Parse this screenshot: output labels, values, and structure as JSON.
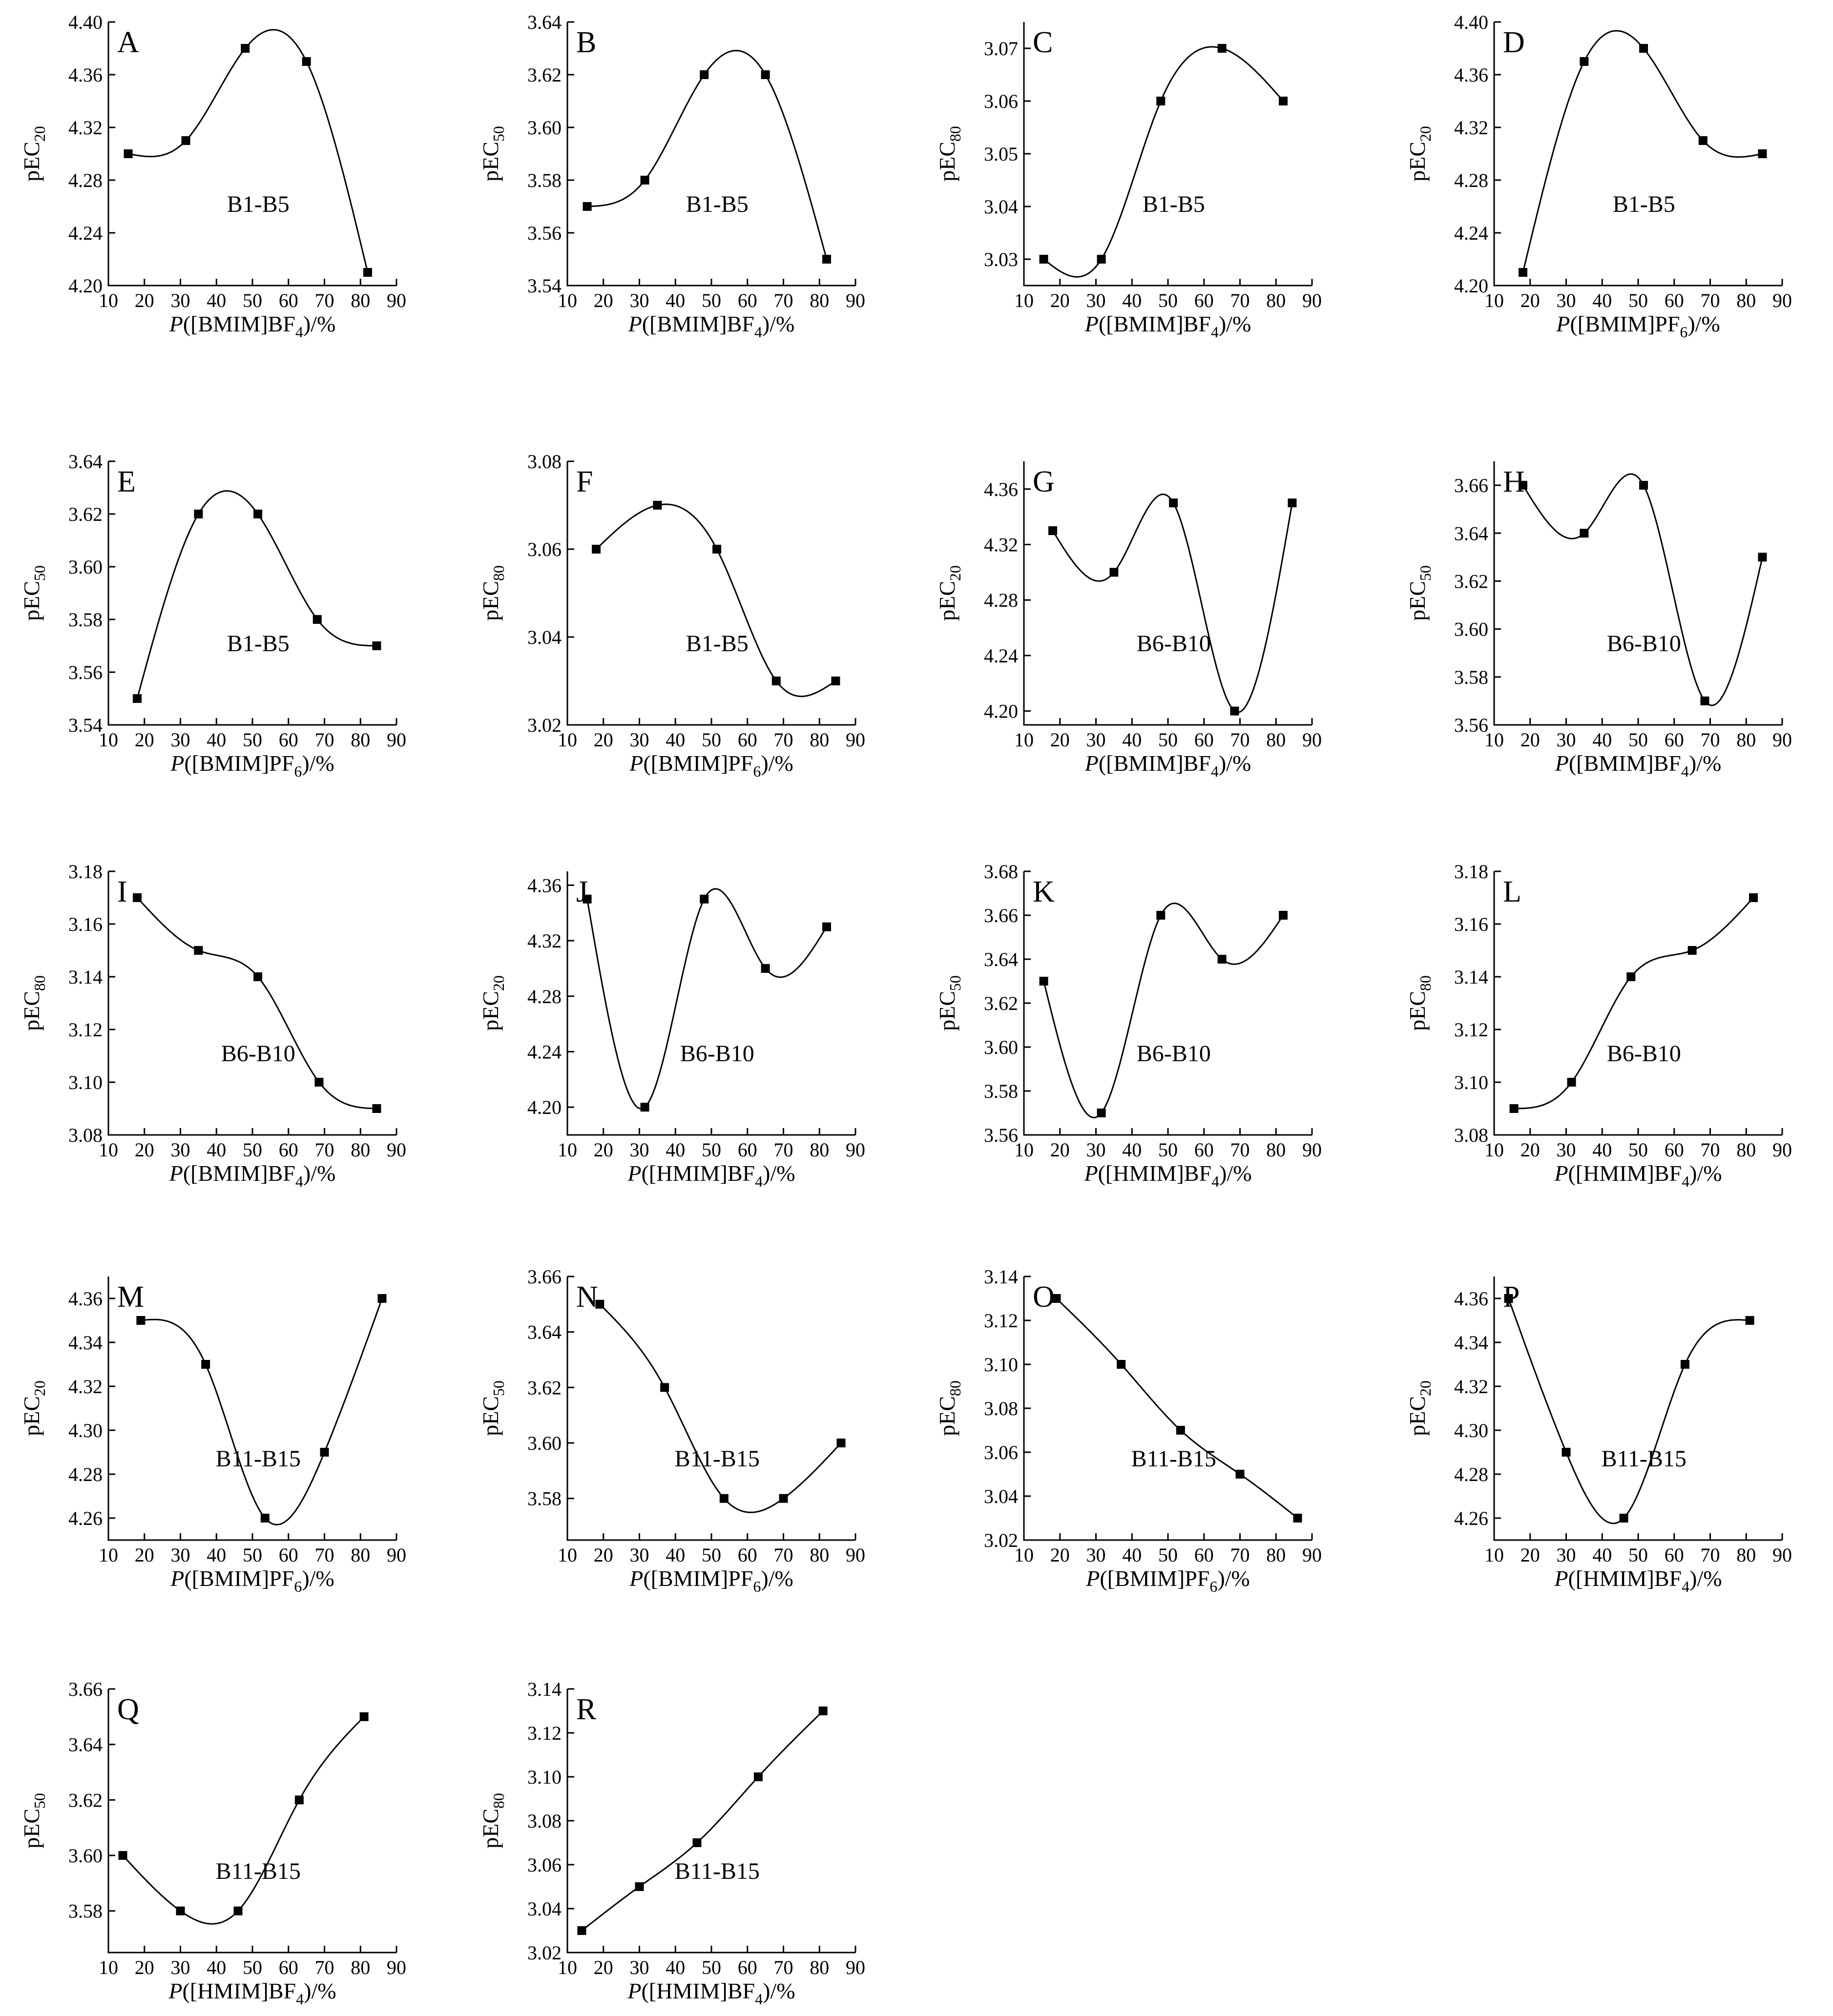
{
  "figure": {
    "background": "#ffffff",
    "stroke_color": "#000000"
  },
  "chart_data": [
    {
      "panel": "A",
      "type": "scatter",
      "series_label": "B1-B5",
      "ylabel_main": "pEC",
      "ylabel_sub": "20",
      "xlabel_ion": "[BMIM]BF",
      "xlabel_sub": "4",
      "xlim": [
        10,
        90
      ],
      "ylim": [
        4.2,
        4.4
      ],
      "xticks": [
        "10",
        "20",
        "30",
        "40",
        "50",
        "60",
        "70",
        "80",
        "90"
      ],
      "yticks": [
        "4.20",
        "4.24",
        "4.28",
        "4.32",
        "4.36",
        "4.40"
      ],
      "x": [
        15.5,
        31.5,
        48,
        65,
        82
      ],
      "y": [
        4.3,
        4.31,
        4.38,
        4.37,
        4.21
      ]
    },
    {
      "panel": "B",
      "type": "scatter",
      "series_label": "B1-B5",
      "ylabel_main": "pEC",
      "ylabel_sub": "50",
      "xlabel_ion": "[BMIM]BF",
      "xlabel_sub": "4",
      "xlim": [
        10,
        90
      ],
      "ylim": [
        3.54,
        3.64
      ],
      "xticks": [
        "10",
        "20",
        "30",
        "40",
        "50",
        "60",
        "70",
        "80",
        "90"
      ],
      "yticks": [
        "3.54",
        "3.56",
        "3.58",
        "3.60",
        "3.62",
        "3.64"
      ],
      "x": [
        15.5,
        31.5,
        48,
        65,
        82
      ],
      "y": [
        3.57,
        3.58,
        3.62,
        3.62,
        3.55
      ]
    },
    {
      "panel": "C",
      "type": "scatter",
      "series_label": "B1-B5",
      "ylabel_main": "pEC",
      "ylabel_sub": "80",
      "xlabel_ion": "[BMIM]BF",
      "xlabel_sub": "4",
      "xlim": [
        10,
        90
      ],
      "ylim": [
        3.025,
        3.075
      ],
      "xticks": [
        "10",
        "20",
        "30",
        "40",
        "50",
        "60",
        "70",
        "80",
        "90"
      ],
      "yticks": [
        "3.03",
        "3.04",
        "3.05",
        "3.06",
        "3.07"
      ],
      "x": [
        15.5,
        31.5,
        48,
        65,
        82
      ],
      "y": [
        3.03,
        3.03,
        3.06,
        3.07,
        3.06
      ]
    },
    {
      "panel": "D",
      "type": "scatter",
      "series_label": "B1-B5",
      "ylabel_main": "pEC",
      "ylabel_sub": "20",
      "xlabel_ion": "[BMIM]PF",
      "xlabel_sub": "6",
      "xlim": [
        10,
        90
      ],
      "ylim": [
        4.2,
        4.4
      ],
      "xticks": [
        "10",
        "20",
        "30",
        "40",
        "50",
        "60",
        "70",
        "80",
        "90"
      ],
      "yticks": [
        "4.20",
        "4.24",
        "4.28",
        "4.32",
        "4.36",
        "4.40"
      ],
      "x": [
        18,
        35,
        51.5,
        68,
        84.5
      ],
      "y": [
        4.21,
        4.37,
        4.38,
        4.31,
        4.3
      ]
    },
    {
      "panel": "E",
      "type": "scatter",
      "series_label": "B1-B5",
      "ylabel_main": "pEC",
      "ylabel_sub": "50",
      "xlabel_ion": "[BMIM]PF",
      "xlabel_sub": "6",
      "xlim": [
        10,
        90
      ],
      "ylim": [
        3.54,
        3.64
      ],
      "xticks": [
        "10",
        "20",
        "30",
        "40",
        "50",
        "60",
        "70",
        "80",
        "90"
      ],
      "yticks": [
        "3.54",
        "3.56",
        "3.58",
        "3.60",
        "3.62",
        "3.64"
      ],
      "x": [
        18,
        35,
        51.5,
        68,
        84.5
      ],
      "y": [
        3.55,
        3.62,
        3.62,
        3.58,
        3.57
      ]
    },
    {
      "panel": "F",
      "type": "scatter",
      "series_label": "B1-B5",
      "ylabel_main": "pEC",
      "ylabel_sub": "80",
      "xlabel_ion": "[BMIM]PF",
      "xlabel_sub": "6",
      "xlim": [
        10,
        90
      ],
      "ylim": [
        3.02,
        3.08
      ],
      "xticks": [
        "10",
        "20",
        "30",
        "40",
        "50",
        "60",
        "70",
        "80",
        "90"
      ],
      "yticks": [
        "3.02",
        "3.04",
        "3.06",
        "3.08"
      ],
      "x": [
        18,
        35,
        51.5,
        68,
        84.5
      ],
      "y": [
        3.06,
        3.07,
        3.06,
        3.03,
        3.03
      ]
    },
    {
      "panel": "G",
      "type": "scatter",
      "series_label": "B6-B10",
      "ylabel_main": "pEC",
      "ylabel_sub": "20",
      "xlabel_ion": "[BMIM]BF",
      "xlabel_sub": "4",
      "xlim": [
        10,
        90
      ],
      "ylim": [
        4.19,
        4.38
      ],
      "xticks": [
        "10",
        "20",
        "30",
        "40",
        "50",
        "60",
        "70",
        "80",
        "90"
      ],
      "yticks": [
        "4.20",
        "4.24",
        "4.28",
        "4.32",
        "4.36"
      ],
      "x": [
        18,
        35,
        51.5,
        68.5,
        84.5
      ],
      "y": [
        4.33,
        4.3,
        4.35,
        4.2,
        4.35
      ]
    },
    {
      "panel": "H",
      "type": "scatter",
      "series_label": "B6-B10",
      "ylabel_main": "pEC",
      "ylabel_sub": "50",
      "xlabel_ion": "[BMIM]BF",
      "xlabel_sub": "4",
      "xlim": [
        10,
        90
      ],
      "ylim": [
        3.56,
        3.67
      ],
      "xticks": [
        "10",
        "20",
        "30",
        "40",
        "50",
        "60",
        "70",
        "80",
        "90"
      ],
      "yticks": [
        "3.56",
        "3.58",
        "3.60",
        "3.62",
        "3.64",
        "3.66"
      ],
      "x": [
        18,
        35,
        51.5,
        68.5,
        84.5
      ],
      "y": [
        3.66,
        3.64,
        3.66,
        3.57,
        3.63
      ]
    },
    {
      "panel": "I",
      "type": "scatter",
      "series_label": "B6-B10",
      "ylabel_main": "pEC",
      "ylabel_sub": "80",
      "xlabel_ion": "[BMIM]BF",
      "xlabel_sub": "4",
      "xlim": [
        10,
        90
      ],
      "ylim": [
        3.08,
        3.18
      ],
      "xticks": [
        "10",
        "20",
        "30",
        "40",
        "50",
        "60",
        "70",
        "80",
        "90"
      ],
      "yticks": [
        "3.08",
        "3.10",
        "3.12",
        "3.14",
        "3.16",
        "3.18"
      ],
      "x": [
        18,
        35,
        51.5,
        68.5,
        84.5
      ],
      "y": [
        3.17,
        3.15,
        3.14,
        3.1,
        3.09
      ]
    },
    {
      "panel": "J",
      "type": "scatter",
      "series_label": "B6-B10",
      "ylabel_main": "pEC",
      "ylabel_sub": "20",
      "xlabel_ion": "[HMIM]BF",
      "xlabel_sub": "4",
      "xlim": [
        10,
        90
      ],
      "ylim": [
        4.18,
        4.37
      ],
      "xticks": [
        "10",
        "20",
        "30",
        "40",
        "50",
        "60",
        "70",
        "80",
        "90"
      ],
      "yticks": [
        "4.20",
        "4.24",
        "4.28",
        "4.32",
        "4.36"
      ],
      "x": [
        15.5,
        31.5,
        48,
        65,
        82
      ],
      "y": [
        4.35,
        4.2,
        4.35,
        4.3,
        4.33
      ]
    },
    {
      "panel": "K",
      "type": "scatter",
      "series_label": "B6-B10",
      "ylabel_main": "pEC",
      "ylabel_sub": "50",
      "xlabel_ion": "[HMIM]BF",
      "xlabel_sub": "4",
      "xlim": [
        10,
        90
      ],
      "ylim": [
        3.56,
        3.68
      ],
      "xticks": [
        "10",
        "20",
        "30",
        "40",
        "50",
        "60",
        "70",
        "80",
        "90"
      ],
      "yticks": [
        "3.56",
        "3.58",
        "3.60",
        "3.62",
        "3.64",
        "3.66",
        "3.68"
      ],
      "x": [
        15.5,
        31.5,
        48,
        65,
        82
      ],
      "y": [
        3.63,
        3.57,
        3.66,
        3.64,
        3.66
      ]
    },
    {
      "panel": "L",
      "type": "scatter",
      "series_label": "B6-B10",
      "ylabel_main": "pEC",
      "ylabel_sub": "80",
      "xlabel_ion": "[HMIM]BF",
      "xlabel_sub": "4",
      "xlim": [
        10,
        90
      ],
      "ylim": [
        3.08,
        3.18
      ],
      "xticks": [
        "10",
        "20",
        "30",
        "40",
        "50",
        "60",
        "70",
        "80",
        "90"
      ],
      "yticks": [
        "3.08",
        "3.10",
        "3.12",
        "3.14",
        "3.16",
        "3.18"
      ],
      "x": [
        15.5,
        31.5,
        48,
        65,
        82
      ],
      "y": [
        3.09,
        3.1,
        3.14,
        3.15,
        3.17
      ]
    },
    {
      "panel": "M",
      "type": "scatter",
      "series_label": "B11-B15",
      "ylabel_main": "pEC",
      "ylabel_sub": "20",
      "xlabel_ion": "[BMIM]PF",
      "xlabel_sub": "6",
      "xlim": [
        10,
        90
      ],
      "ylim": [
        4.25,
        4.37
      ],
      "xticks": [
        "10",
        "20",
        "30",
        "40",
        "50",
        "60",
        "70",
        "80",
        "90"
      ],
      "yticks": [
        "4.26",
        "4.28",
        "4.30",
        "4.32",
        "4.34",
        "4.36"
      ],
      "x": [
        19,
        37,
        53.5,
        70,
        86
      ],
      "y": [
        4.35,
        4.33,
        4.26,
        4.29,
        4.36
      ]
    },
    {
      "panel": "N",
      "type": "scatter",
      "series_label": "B11-B15",
      "ylabel_main": "pEC",
      "ylabel_sub": "50",
      "xlabel_ion": "[BMIM]PF",
      "xlabel_sub": "6",
      "xlim": [
        10,
        90
      ],
      "ylim": [
        3.565,
        3.66
      ],
      "xticks": [
        "10",
        "20",
        "30",
        "40",
        "50",
        "60",
        "70",
        "80",
        "90"
      ],
      "yticks": [
        "3.58",
        "3.60",
        "3.62",
        "3.64",
        "3.66"
      ],
      "x": [
        19,
        37,
        53.5,
        70,
        86
      ],
      "y": [
        3.65,
        3.62,
        3.58,
        3.58,
        3.6
      ]
    },
    {
      "panel": "O",
      "type": "scatter",
      "series_label": "B11-B15",
      "ylabel_main": "pEC",
      "ylabel_sub": "80",
      "xlabel_ion": "[BMIM]PF",
      "xlabel_sub": "6",
      "xlim": [
        10,
        90
      ],
      "ylim": [
        3.02,
        3.14
      ],
      "xticks": [
        "10",
        "20",
        "30",
        "40",
        "50",
        "60",
        "70",
        "80",
        "90"
      ],
      "yticks": [
        "3.02",
        "3.04",
        "3.06",
        "3.08",
        "3.10",
        "3.12",
        "3.14"
      ],
      "x": [
        19,
        37,
        53.5,
        70,
        86
      ],
      "y": [
        3.13,
        3.1,
        3.07,
        3.05,
        3.03
      ]
    },
    {
      "panel": "P",
      "type": "scatter",
      "series_label": "B11-B15",
      "ylabel_main": "pEC",
      "ylabel_sub": "20",
      "xlabel_ion": "[HMIM]BF",
      "xlabel_sub": "4",
      "xlim": [
        10,
        90
      ],
      "ylim": [
        4.25,
        4.37
      ],
      "xticks": [
        "10",
        "20",
        "30",
        "40",
        "50",
        "60",
        "70",
        "80",
        "90"
      ],
      "yticks": [
        "4.26",
        "4.28",
        "4.30",
        "4.32",
        "4.34",
        "4.36"
      ],
      "x": [
        14,
        30,
        46,
        63,
        81
      ],
      "y": [
        4.36,
        4.29,
        4.26,
        4.33,
        4.35
      ]
    },
    {
      "panel": "Q",
      "type": "scatter",
      "series_label": "B11-B15",
      "ylabel_main": "pEC",
      "ylabel_sub": "50",
      "xlabel_ion": "[HMIM]BF",
      "xlabel_sub": "4",
      "xlim": [
        10,
        90
      ],
      "ylim": [
        3.565,
        3.66
      ],
      "xticks": [
        "10",
        "20",
        "30",
        "40",
        "50",
        "60",
        "70",
        "80",
        "90"
      ],
      "yticks": [
        "3.58",
        "3.60",
        "3.62",
        "3.64",
        "3.66"
      ],
      "x": [
        14,
        30,
        46,
        63,
        81
      ],
      "y": [
        3.6,
        3.58,
        3.58,
        3.62,
        3.65
      ]
    },
    {
      "panel": "R",
      "type": "scatter",
      "series_label": "B11-B15",
      "ylabel_main": "pEC",
      "ylabel_sub": "80",
      "xlabel_ion": "[HMIM]BF",
      "xlabel_sub": "4",
      "xlim": [
        10,
        90
      ],
      "ylim": [
        3.02,
        3.14
      ],
      "xticks": [
        "10",
        "20",
        "30",
        "40",
        "50",
        "60",
        "70",
        "80",
        "90"
      ],
      "yticks": [
        "3.02",
        "3.04",
        "3.06",
        "3.08",
        "3.10",
        "3.12",
        "3.14"
      ],
      "x": [
        14,
        30,
        46,
        63,
        81
      ],
      "y": [
        3.03,
        3.05,
        3.07,
        3.1,
        3.13
      ]
    }
  ]
}
